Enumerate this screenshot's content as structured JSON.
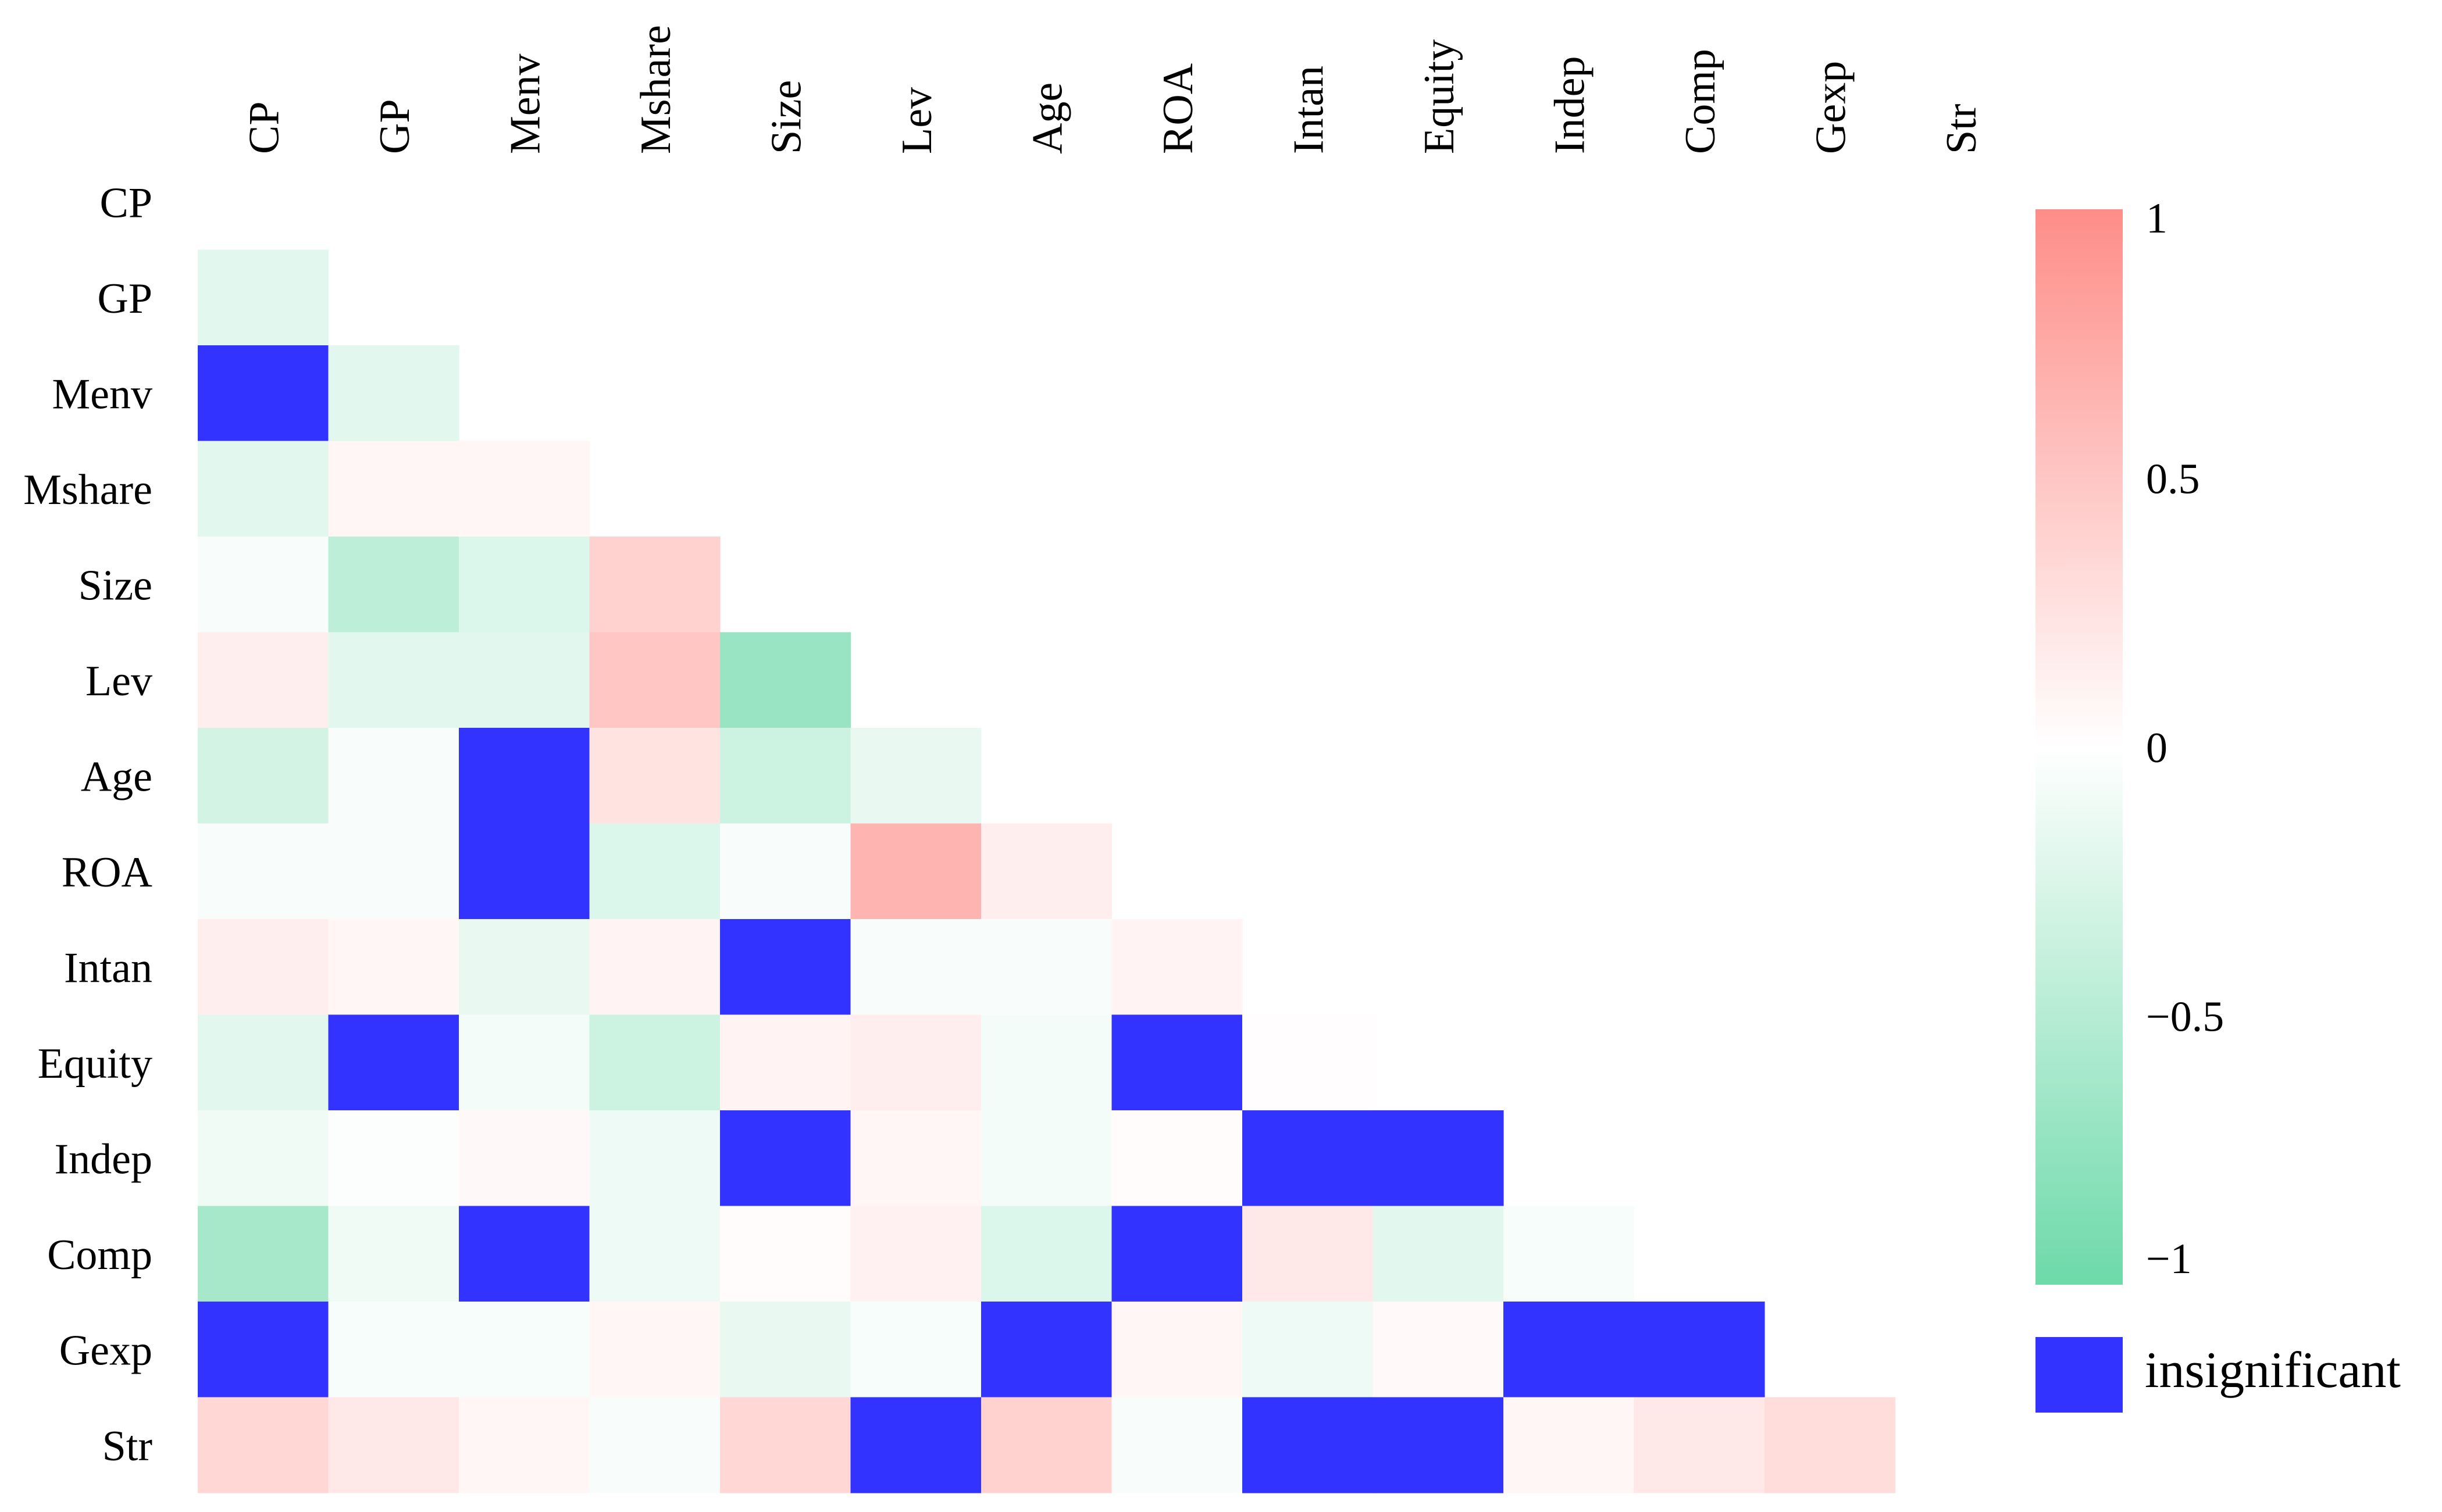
{
  "chart_data": {
    "type": "heatmap",
    "variables": [
      "CP",
      "GP",
      "Menv",
      "Mshare",
      "Size",
      "Lev",
      "Age",
      "ROA",
      "Intan",
      "Equity",
      "Indep",
      "Comp",
      "Gexp",
      "Str"
    ],
    "cells": [
      {
        "row": "GP",
        "col": "CP",
        "value": -0.2
      },
      {
        "row": "Menv",
        "col": "CP",
        "value": null
      },
      {
        "row": "Menv",
        "col": "GP",
        "value": -0.2
      },
      {
        "row": "Mshare",
        "col": "CP",
        "value": -0.2
      },
      {
        "row": "Mshare",
        "col": "GP",
        "value": 0.08
      },
      {
        "row": "Mshare",
        "col": "Menv",
        "value": 0.08
      },
      {
        "row": "Size",
        "col": "CP",
        "value": -0.05
      },
      {
        "row": "Size",
        "col": "GP",
        "value": -0.45
      },
      {
        "row": "Size",
        "col": "Menv",
        "value": -0.25
      },
      {
        "row": "Size",
        "col": "Mshare",
        "value": 0.4
      },
      {
        "row": "Lev",
        "col": "CP",
        "value": 0.15
      },
      {
        "row": "Lev",
        "col": "GP",
        "value": -0.2
      },
      {
        "row": "Lev",
        "col": "Menv",
        "value": -0.2
      },
      {
        "row": "Lev",
        "col": "Mshare",
        "value": 0.5
      },
      {
        "row": "Lev",
        "col": "Size",
        "value": -0.7
      },
      {
        "row": "Age",
        "col": "CP",
        "value": -0.3
      },
      {
        "row": "Age",
        "col": "GP",
        "value": -0.05
      },
      {
        "row": "Age",
        "col": "Menv",
        "value": null
      },
      {
        "row": "Age",
        "col": "Mshare",
        "value": 0.25
      },
      {
        "row": "Age",
        "col": "Size",
        "value": -0.35
      },
      {
        "row": "Age",
        "col": "Lev",
        "value": -0.15
      },
      {
        "row": "ROA",
        "col": "CP",
        "value": -0.05
      },
      {
        "row": "ROA",
        "col": "GP",
        "value": -0.05
      },
      {
        "row": "ROA",
        "col": "Menv",
        "value": null
      },
      {
        "row": "ROA",
        "col": "Mshare",
        "value": -0.25
      },
      {
        "row": "ROA",
        "col": "Size",
        "value": -0.05
      },
      {
        "row": "ROA",
        "col": "Lev",
        "value": 0.65
      },
      {
        "row": "ROA",
        "col": "Age",
        "value": 0.15
      },
      {
        "row": "Intan",
        "col": "CP",
        "value": 0.15
      },
      {
        "row": "Intan",
        "col": "GP",
        "value": 0.08
      },
      {
        "row": "Intan",
        "col": "Menv",
        "value": -0.15
      },
      {
        "row": "Intan",
        "col": "Mshare",
        "value": 0.1
      },
      {
        "row": "Intan",
        "col": "Size",
        "value": null
      },
      {
        "row": "Intan",
        "col": "Lev",
        "value": -0.05
      },
      {
        "row": "Intan",
        "col": "Age",
        "value": -0.05
      },
      {
        "row": "Intan",
        "col": "ROA",
        "value": 0.1
      },
      {
        "row": "Equity",
        "col": "CP",
        "value": -0.2
      },
      {
        "row": "Equity",
        "col": "GP",
        "value": null
      },
      {
        "row": "Equity",
        "col": "Menv",
        "value": -0.08
      },
      {
        "row": "Equity",
        "col": "Mshare",
        "value": -0.35
      },
      {
        "row": "Equity",
        "col": "Size",
        "value": 0.1
      },
      {
        "row": "Equity",
        "col": "Lev",
        "value": 0.15
      },
      {
        "row": "Equity",
        "col": "Age",
        "value": -0.08
      },
      {
        "row": "Equity",
        "col": "ROA",
        "value": null
      },
      {
        "row": "Equity",
        "col": "Intan",
        "value": 0.02
      },
      {
        "row": "Indep",
        "col": "CP",
        "value": -0.1
      },
      {
        "row": "Indep",
        "col": "GP",
        "value": -0.03
      },
      {
        "row": "Indep",
        "col": "Menv",
        "value": 0.06
      },
      {
        "row": "Indep",
        "col": "Mshare",
        "value": -0.12
      },
      {
        "row": "Indep",
        "col": "Size",
        "value": null
      },
      {
        "row": "Indep",
        "col": "Lev",
        "value": 0.08
      },
      {
        "row": "Indep",
        "col": "Age",
        "value": -0.08
      },
      {
        "row": "Indep",
        "col": "ROA",
        "value": 0.03
      },
      {
        "row": "Indep",
        "col": "Intan",
        "value": null
      },
      {
        "row": "Indep",
        "col": "Equity",
        "value": null
      },
      {
        "row": "Comp",
        "col": "CP",
        "value": -0.6
      },
      {
        "row": "Comp",
        "col": "GP",
        "value": -0.1
      },
      {
        "row": "Comp",
        "col": "Menv",
        "value": null
      },
      {
        "row": "Comp",
        "col": "Mshare",
        "value": -0.12
      },
      {
        "row": "Comp",
        "col": "Size",
        "value": 0.03
      },
      {
        "row": "Comp",
        "col": "Lev",
        "value": 0.12
      },
      {
        "row": "Comp",
        "col": "Age",
        "value": -0.25
      },
      {
        "row": "Comp",
        "col": "ROA",
        "value": null
      },
      {
        "row": "Comp",
        "col": "Intan",
        "value": 0.2
      },
      {
        "row": "Comp",
        "col": "Equity",
        "value": -0.2
      },
      {
        "row": "Comp",
        "col": "Indep",
        "value": -0.06
      },
      {
        "row": "Gexp",
        "col": "CP",
        "value": null
      },
      {
        "row": "Gexp",
        "col": "GP",
        "value": -0.06
      },
      {
        "row": "Gexp",
        "col": "Menv",
        "value": -0.06
      },
      {
        "row": "Gexp",
        "col": "Mshare",
        "value": 0.08
      },
      {
        "row": "Gexp",
        "col": "Size",
        "value": -0.15
      },
      {
        "row": "Gexp",
        "col": "Lev",
        "value": -0.06
      },
      {
        "row": "Gexp",
        "col": "Age",
        "value": null
      },
      {
        "row": "Gexp",
        "col": "ROA",
        "value": 0.08
      },
      {
        "row": "Gexp",
        "col": "Intan",
        "value": -0.12
      },
      {
        "row": "Gexp",
        "col": "Equity",
        "value": 0.05
      },
      {
        "row": "Gexp",
        "col": "Indep",
        "value": null
      },
      {
        "row": "Gexp",
        "col": "Comp",
        "value": null
      },
      {
        "row": "Str",
        "col": "CP",
        "value": 0.35
      },
      {
        "row": "Str",
        "col": "GP",
        "value": 0.2
      },
      {
        "row": "Str",
        "col": "Menv",
        "value": 0.08
      },
      {
        "row": "Str",
        "col": "Mshare",
        "value": -0.05
      },
      {
        "row": "Str",
        "col": "Size",
        "value": 0.35
      },
      {
        "row": "Str",
        "col": "Lev",
        "value": null
      },
      {
        "row": "Str",
        "col": "Age",
        "value": 0.4
      },
      {
        "row": "Str",
        "col": "ROA",
        "value": -0.05
      },
      {
        "row": "Str",
        "col": "Intan",
        "value": null
      },
      {
        "row": "Str",
        "col": "Equity",
        "value": null
      },
      {
        "row": "Str",
        "col": "Indep",
        "value": 0.08
      },
      {
        "row": "Str",
        "col": "Comp",
        "value": 0.2
      },
      {
        "row": "Str",
        "col": "Gexp",
        "value": 0.3
      }
    ],
    "colorbar": {
      "range": [
        -1,
        1
      ],
      "tick_values": [
        1,
        0.5,
        0,
        -0.5,
        -1
      ],
      "tick_labels": [
        "1",
        "0.5",
        "0",
        "−0.5",
        "−1"
      ]
    },
    "colors": {
      "positive": "#fe8d88",
      "zero": "#ffffff",
      "negative": "#6dd9a9",
      "insignificant": "#3333ff"
    },
    "legend": {
      "label": "insignificant",
      "placement": "right"
    }
  }
}
